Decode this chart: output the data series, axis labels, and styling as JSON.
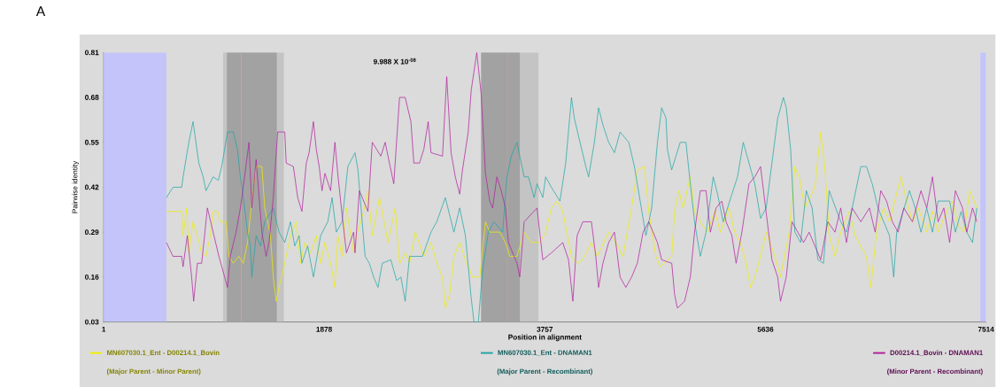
{
  "chart_data": {
    "type": "line",
    "xlabel": "Position in alignment",
    "ylabel": "Pairwise identity",
    "xlim": [
      1,
      7514
    ],
    "ylim": [
      0.03,
      0.81
    ],
    "xticks": [
      1,
      1878,
      3757,
      5636,
      7514
    ],
    "yticks": [
      0.03,
      0.16,
      0.29,
      0.42,
      0.55,
      0.68,
      0.81
    ],
    "legend": "bottom",
    "series": [
      {
        "name": "MN607030.1_Ent - D00214.1_Bovin",
        "color": "#f0f000",
        "x": [
          535,
          665,
          677,
          709,
          726,
          762,
          799,
          835,
          872,
          909,
          933,
          970,
          994,
          1043,
          1067,
          1104,
          1153,
          1189,
          1226,
          1262,
          1299,
          1348,
          1372,
          1421,
          1445,
          1470,
          1494,
          1543,
          1592,
          1641,
          1677,
          1714,
          1763,
          1811,
          1848,
          1885,
          1933,
          1970,
          1994,
          2031,
          2068,
          2129,
          2154,
          2215,
          2251,
          2288,
          2349,
          2422,
          2483,
          2520,
          2568,
          2605,
          2654,
          2727,
          2788,
          2837,
          2886,
          2910,
          2947,
          2983,
          3032,
          3081,
          3142,
          3203,
          3252,
          3288,
          3374,
          3422,
          3459,
          3520,
          3581,
          3642,
          3715,
          3764,
          3813,
          3862,
          3910,
          3984,
          4032,
          4081,
          4154,
          4203,
          4301,
          4362,
          4423,
          4496,
          4545,
          4606,
          4642,
          4703,
          4740,
          4838,
          4862,
          4898,
          4935,
          4996,
          5032,
          5081,
          5142,
          5203,
          5252,
          5325,
          5374,
          5423,
          5472,
          5508,
          5545,
          5594,
          5642,
          5716,
          5764,
          5838,
          5886,
          5923,
          5972,
          6057,
          6106,
          6143,
          6179,
          6228,
          6277,
          6350,
          6399,
          6496,
          6533,
          6582,
          6643,
          6692,
          6789,
          6838,
          6887,
          6936,
          7009,
          7058,
          7106,
          7180,
          7228,
          7277,
          7326,
          7375,
          7436
        ],
        "values": [
          0.35,
          0.35,
          0.28,
          0.36,
          0.23,
          0.32,
          0.28,
          0.23,
          0.22,
          0.28,
          0.35,
          0.35,
          0.32,
          0.32,
          0.22,
          0.2,
          0.22,
          0.2,
          0.26,
          0.38,
          0.48,
          0.48,
          0.36,
          0.28,
          0.16,
          0.09,
          0.13,
          0.2,
          0.28,
          0.32,
          0.2,
          0.26,
          0.23,
          0.28,
          0.2,
          0.26,
          0.2,
          0.13,
          0.28,
          0.22,
          0.36,
          0.23,
          0.28,
          0.35,
          0.41,
          0.28,
          0.39,
          0.26,
          0.36,
          0.2,
          0.23,
          0.2,
          0.29,
          0.22,
          0.26,
          0.2,
          0.16,
          0.07,
          0.11,
          0.22,
          0.26,
          0.21,
          0.16,
          0.16,
          0.32,
          0.29,
          0.29,
          0.26,
          0.22,
          0.22,
          0.29,
          0.26,
          0.26,
          0.29,
          0.36,
          0.38,
          0.35,
          0.22,
          0.2,
          0.21,
          0.26,
          0.22,
          0.29,
          0.26,
          0.22,
          0.36,
          0.47,
          0.48,
          0.35,
          0.22,
          0.19,
          0.22,
          0.35,
          0.41,
          0.36,
          0.45,
          0.35,
          0.32,
          0.29,
          0.35,
          0.29,
          0.36,
          0.29,
          0.26,
          0.2,
          0.13,
          0.16,
          0.22,
          0.29,
          0.22,
          0.16,
          0.29,
          0.48,
          0.45,
          0.36,
          0.42,
          0.58,
          0.47,
          0.28,
          0.22,
          0.29,
          0.35,
          0.28,
          0.22,
          0.13,
          0.29,
          0.36,
          0.32,
          0.45,
          0.38,
          0.32,
          0.36,
          0.29,
          0.35,
          0.29,
          0.35,
          0.38,
          0.31,
          0.29,
          0.41,
          0.36
        ]
      },
      {
        "name": "MN607030.1_Ent - DNAMAN1",
        "color": "#1fa5a5",
        "x": [
          535,
          591,
          665,
          677,
          726,
          762,
          811,
          848,
          872,
          933,
          977,
          1006,
          1055,
          1104,
          1140,
          1165,
          1201,
          1226,
          1250,
          1262,
          1299,
          1336,
          1372,
          1445,
          1494,
          1543,
          1592,
          1628,
          1665,
          1689,
          1738,
          1787,
          1848,
          1909,
          1946,
          1982,
          2031,
          2080,
          2141,
          2166,
          2202,
          2227,
          2263,
          2300,
          2337,
          2373,
          2446,
          2495,
          2532,
          2568,
          2605,
          2715,
          2788,
          2837,
          2910,
          2983,
          3032,
          3081,
          3130,
          3154,
          3191,
          3227,
          3276,
          3325,
          3398,
          3435,
          3471,
          3520,
          3544,
          3581,
          3618,
          3666,
          3691,
          3740,
          3764,
          3813,
          3886,
          3935,
          3984,
          4008,
          4057,
          4106,
          4130,
          4179,
          4215,
          4252,
          4301,
          4350,
          4398,
          4472,
          4520,
          4569,
          4618,
          4667,
          4716,
          4752,
          4789,
          4801,
          4837,
          4874,
          4910,
          4959,
          4996,
          5032,
          5081,
          5130,
          5191,
          5228,
          5276,
          5350,
          5398,
          5447,
          5496,
          5545,
          5594,
          5642,
          5691,
          5740,
          5789,
          5813,
          5850,
          5886,
          5935,
          5984,
          6033,
          6082,
          6130,
          6179,
          6277,
          6326,
          6374,
          6448,
          6496,
          6545,
          6594,
          6692,
          6728,
          6753,
          6862,
          6911,
          6960,
          7009,
          7058,
          7106,
          7204,
          7253,
          7302,
          7350,
          7399,
          7436
        ],
        "values": [
          0.39,
          0.42,
          0.42,
          0.45,
          0.55,
          0.61,
          0.49,
          0.45,
          0.41,
          0.45,
          0.44,
          0.48,
          0.58,
          0.58,
          0.53,
          0.45,
          0.36,
          0.29,
          0.25,
          0.16,
          0.28,
          0.25,
          0.32,
          0.36,
          0.29,
          0.26,
          0.32,
          0.25,
          0.28,
          0.2,
          0.25,
          0.16,
          0.28,
          0.32,
          0.39,
          0.29,
          0.32,
          0.48,
          0.52,
          0.47,
          0.32,
          0.22,
          0.2,
          0.16,
          0.13,
          0.2,
          0.21,
          0.15,
          0.16,
          0.09,
          0.22,
          0.22,
          0.29,
          0.32,
          0.39,
          0.29,
          0.36,
          0.28,
          0.1,
          0.03,
          0.03,
          0.18,
          0.29,
          0.32,
          0.29,
          0.45,
          0.51,
          0.55,
          0.51,
          0.45,
          0.45,
          0.39,
          0.43,
          0.39,
          0.45,
          0.42,
          0.38,
          0.49,
          0.68,
          0.62,
          0.55,
          0.48,
          0.45,
          0.55,
          0.65,
          0.6,
          0.55,
          0.52,
          0.58,
          0.55,
          0.48,
          0.38,
          0.28,
          0.36,
          0.55,
          0.65,
          0.62,
          0.53,
          0.47,
          0.51,
          0.55,
          0.55,
          0.43,
          0.32,
          0.22,
          0.29,
          0.45,
          0.4,
          0.32,
          0.4,
          0.45,
          0.55,
          0.49,
          0.43,
          0.33,
          0.36,
          0.49,
          0.62,
          0.68,
          0.65,
          0.53,
          0.29,
          0.26,
          0.41,
          0.36,
          0.21,
          0.2,
          0.41,
          0.32,
          0.29,
          0.36,
          0.48,
          0.48,
          0.43,
          0.36,
          0.28,
          0.16,
          0.29,
          0.41,
          0.36,
          0.29,
          0.36,
          0.29,
          0.38,
          0.38,
          0.29,
          0.35,
          0.29,
          0.26,
          0.36
        ]
      },
      {
        "name": "D00214.1_Bovin - DNAMAN1",
        "color": "#b01e9e",
        "x": [
          535,
          591,
          665,
          677,
          713,
          750,
          767,
          799,
          835,
          860,
          884,
          933,
          982,
          1031,
          1055,
          1079,
          1128,
          1165,
          1201,
          1238,
          1262,
          1299,
          1348,
          1384,
          1409,
          1445,
          1482,
          1543,
          1555,
          1616,
          1653,
          1689,
          1726,
          1750,
          1787,
          1811,
          1836,
          1860,
          1885,
          1933,
          1970,
          1994,
          2031,
          2068,
          2129,
          2141,
          2178,
          2215,
          2251,
          2288,
          2361,
          2398,
          2434,
          2471,
          2520,
          2568,
          2617,
          2642,
          2690,
          2727,
          2764,
          2788,
          2886,
          2922,
          2959,
          2995,
          3032,
          3056,
          3105,
          3130,
          3178,
          3215,
          3252,
          3288,
          3313,
          3349,
          3386,
          3422,
          3447,
          3520,
          3544,
          3581,
          3691,
          3740,
          3813,
          3910,
          3959,
          3996,
          4032,
          4081,
          4154,
          4191,
          4215,
          4252,
          4301,
          4350,
          4398,
          4447,
          4496,
          4545,
          4594,
          4642,
          4716,
          4752,
          4838,
          4862,
          4886,
          4947,
          4996,
          5032,
          5081,
          5130,
          5167,
          5215,
          5264,
          5301,
          5350,
          5386,
          5435,
          5496,
          5545,
          5594,
          5630,
          5691,
          5740,
          5764,
          5813,
          5862,
          5960,
          6008,
          6106,
          6167,
          6228,
          6277,
          6326,
          6374,
          6448,
          6521,
          6570,
          6618,
          6667,
          6716,
          6765,
          6814,
          6887,
          6960,
          7009,
          7058,
          7106,
          7155,
          7204,
          7253,
          7314,
          7350,
          7399,
          7436
        ],
        "values": [
          0.26,
          0.22,
          0.22,
          0.19,
          0.28,
          0.16,
          0.09,
          0.2,
          0.2,
          0.28,
          0.36,
          0.29,
          0.22,
          0.16,
          0.13,
          0.22,
          0.29,
          0.36,
          0.45,
          0.55,
          0.36,
          0.5,
          0.29,
          0.22,
          0.26,
          0.39,
          0.58,
          0.58,
          0.49,
          0.48,
          0.39,
          0.35,
          0.49,
          0.52,
          0.61,
          0.53,
          0.48,
          0.41,
          0.46,
          0.41,
          0.55,
          0.46,
          0.34,
          0.23,
          0.29,
          0.23,
          0.41,
          0.38,
          0.35,
          0.55,
          0.51,
          0.55,
          0.49,
          0.43,
          0.68,
          0.68,
          0.61,
          0.49,
          0.49,
          0.53,
          0.61,
          0.52,
          0.51,
          0.74,
          0.52,
          0.45,
          0.4,
          0.47,
          0.58,
          0.7,
          0.81,
          0.69,
          0.46,
          0.38,
          0.36,
          0.45,
          0.41,
          0.36,
          0.26,
          0.2,
          0.16,
          0.32,
          0.36,
          0.21,
          0.23,
          0.26,
          0.21,
          0.09,
          0.28,
          0.32,
          0.32,
          0.22,
          0.13,
          0.2,
          0.26,
          0.29,
          0.16,
          0.13,
          0.16,
          0.2,
          0.29,
          0.32,
          0.26,
          0.21,
          0.2,
          0.11,
          0.07,
          0.09,
          0.16,
          0.29,
          0.41,
          0.41,
          0.29,
          0.36,
          0.38,
          0.32,
          0.28,
          0.2,
          0.29,
          0.43,
          0.45,
          0.48,
          0.38,
          0.21,
          0.16,
          0.09,
          0.16,
          0.32,
          0.26,
          0.29,
          0.21,
          0.32,
          0.29,
          0.36,
          0.26,
          0.36,
          0.32,
          0.36,
          0.29,
          0.41,
          0.38,
          0.32,
          0.29,
          0.36,
          0.32,
          0.41,
          0.36,
          0.45,
          0.32,
          0.36,
          0.26,
          0.41,
          0.36,
          0.29,
          0.36,
          0.32
        ]
      }
    ],
    "bands": [
      {
        "axis": "x",
        "from": 1,
        "to": 535,
        "color": "#c4c4fa"
      },
      {
        "axis": "x",
        "from": 7465,
        "to": 7514,
        "color": "#c4c4fa"
      },
      {
        "axis": "x",
        "from": 1018,
        "to": 1536,
        "color": "#c4c4c4"
      },
      {
        "axis": "x",
        "from": 1050,
        "to": 1475,
        "color": "#a2a2a2"
      },
      {
        "axis": "x",
        "from": 3215,
        "to": 3703,
        "color": "#c4c4c4"
      },
      {
        "axis": "x",
        "from": 3215,
        "to": 3544,
        "color": "#a2a2a2"
      }
    ],
    "ref_lines": [
      {
        "axis": "x",
        "value": 1172,
        "color": "#ff9a9a"
      },
      {
        "axis": "x",
        "value": 3439,
        "color": "#ff9a9a"
      }
    ],
    "annotations": [
      "A",
      "9.988 X 10$^{-08}$",
      "(Major Parent - Minor Parent)",
      "(Major Parent - Recombinant)",
      "(Minor Parent - Recombinant)"
    ]
  }
}
